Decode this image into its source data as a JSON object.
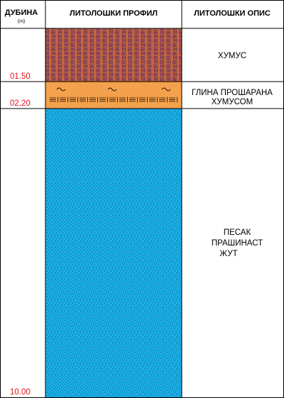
{
  "headers": {
    "depth": "ДУБИНА",
    "depth_unit": "(m)",
    "profile": "ЛИТОЛОШКИ ПРОФИЛ",
    "description": "ЛИТОЛОШКИ ОПИС"
  },
  "layers": [
    {
      "id": "humus",
      "bottom_label": "01.50",
      "description": [
        "ХУМУС"
      ],
      "color": "#c1643f",
      "pattern": "humus"
    },
    {
      "id": "clay",
      "bottom_label": "02.20",
      "description": [
        "ГЛИНА ПРОШАРАНА",
        "ХУМУСОМ"
      ],
      "color": "#f3a14c",
      "pattern": "clay"
    },
    {
      "id": "sand",
      "bottom_label": "10.00",
      "description": [
        "ПЕСАК",
        "ПРАШИНАСТ",
        "ЖУТ"
      ],
      "color": "#1ab2ea",
      "pattern": "sand"
    }
  ],
  "colors": {
    "depth_text": "#e0141e",
    "grid": "#000000"
  }
}
